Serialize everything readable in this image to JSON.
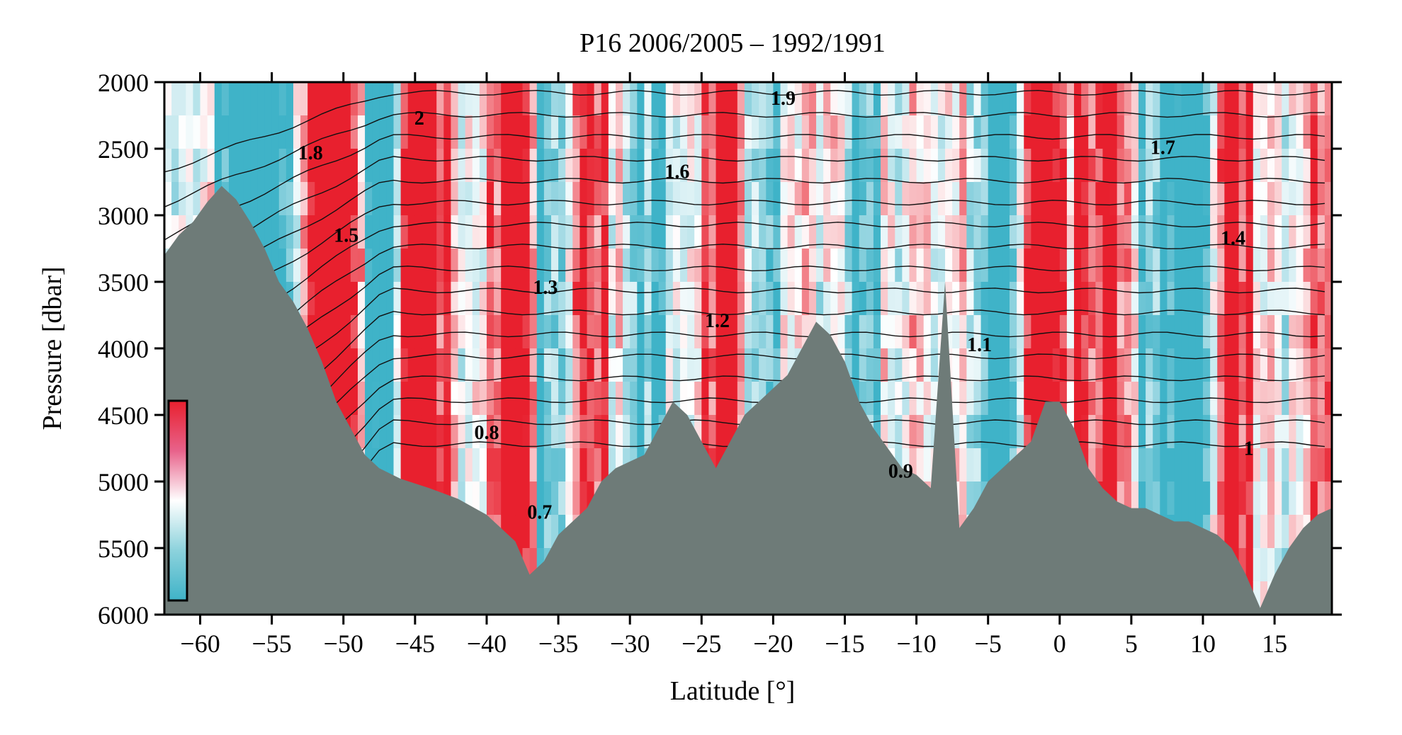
{
  "chart_data": {
    "type": "heatmap",
    "title": "P16 2006/2005 – 1992/1991",
    "xlabel": "Latitude [°]",
    "ylabel": "Pressure [dbar]",
    "xlim": [
      -62.5,
      19
    ],
    "ylim": [
      6000,
      2000
    ],
    "x_ticks": [
      -60,
      -55,
      -50,
      -45,
      -40,
      -35,
      -30,
      -25,
      -20,
      -15,
      -10,
      -5,
      0,
      5,
      10,
      15
    ],
    "y_ticks": [
      2000,
      2500,
      3000,
      3500,
      4000,
      4500,
      5000,
      5500,
      6000
    ],
    "colormap": {
      "low_color": "#3fb3c8",
      "mid_color": "#ffffff",
      "high_color": "#e8202e",
      "ticks_labeled": false
    },
    "bottom_color": "#6e7b78",
    "contour_labels": [
      {
        "text": "2",
        "lat": -44.7,
        "pres": 2320
      },
      {
        "text": "1.9",
        "lat": -19.3,
        "pres": 2170
      },
      {
        "text": "1.8",
        "lat": -52.3,
        "pres": 2580
      },
      {
        "text": "1.7",
        "lat": 7.2,
        "pres": 2540
      },
      {
        "text": "1.6",
        "lat": -26.7,
        "pres": 2720
      },
      {
        "text": "1.5",
        "lat": -49.8,
        "pres": 3200
      },
      {
        "text": "1.4",
        "lat": 12.1,
        "pres": 3220
      },
      {
        "text": "1.3",
        "lat": -35.9,
        "pres": 3590
      },
      {
        "text": "1.2",
        "lat": -23.9,
        "pres": 3840
      },
      {
        "text": "1.1",
        "lat": -5.6,
        "pres": 4020
      },
      {
        "text": "1",
        "lat": 13.2,
        "pres": 4800
      },
      {
        "text": "0.9",
        "lat": -11.1,
        "pres": 4970
      },
      {
        "text": "0.8",
        "lat": -40.0,
        "pres": 4680
      },
      {
        "text": "0.7",
        "lat": -36.3,
        "pres": 5280
      }
    ],
    "bathymetry": [
      [
        -62.5,
        3300
      ],
      [
        -61.5,
        3150
      ],
      [
        -60.5,
        3050
      ],
      [
        -59.5,
        2900
      ],
      [
        -58.5,
        2780
      ],
      [
        -57.5,
        2880
      ],
      [
        -56.5,
        3050
      ],
      [
        -55.5,
        3250
      ],
      [
        -54.5,
        3500
      ],
      [
        -53.5,
        3650
      ],
      [
        -52.5,
        3850
      ],
      [
        -51.5,
        4100
      ],
      [
        -50.5,
        4400
      ],
      [
        -49.5,
        4600
      ],
      [
        -48.5,
        4800
      ],
      [
        -47.5,
        4900
      ],
      [
        -46,
        4980
      ],
      [
        -44,
        5050
      ],
      [
        -42,
        5130
      ],
      [
        -40,
        5250
      ],
      [
        -38,
        5450
      ],
      [
        -37,
        5700
      ],
      [
        -36,
        5600
      ],
      [
        -35,
        5400
      ],
      [
        -34,
        5300
      ],
      [
        -33,
        5200
      ],
      [
        -32,
        5000
      ],
      [
        -31,
        4900
      ],
      [
        -30,
        4850
      ],
      [
        -29,
        4800
      ],
      [
        -28,
        4600
      ],
      [
        -27,
        4400
      ],
      [
        -26,
        4500
      ],
      [
        -25,
        4700
      ],
      [
        -24,
        4900
      ],
      [
        -23,
        4700
      ],
      [
        -22,
        4500
      ],
      [
        -21,
        4400
      ],
      [
        -20,
        4300
      ],
      [
        -19,
        4200
      ],
      [
        -18,
        4000
      ],
      [
        -17,
        3800
      ],
      [
        -16,
        3900
      ],
      [
        -15,
        4100
      ],
      [
        -14,
        4400
      ],
      [
        -13,
        4600
      ],
      [
        -12,
        4750
      ],
      [
        -11,
        4900
      ],
      [
        -10,
        4950
      ],
      [
        -9,
        5050
      ],
      [
        -8,
        3500
      ],
      [
        -7,
        5350
      ],
      [
        -6,
        5200
      ],
      [
        -5,
        5000
      ],
      [
        -4,
        4900
      ],
      [
        -3,
        4800
      ],
      [
        -2,
        4700
      ],
      [
        -1,
        4400
      ],
      [
        0,
        4400
      ],
      [
        1,
        4600
      ],
      [
        2,
        4900
      ],
      [
        3,
        5050
      ],
      [
        4,
        5150
      ],
      [
        5,
        5200
      ],
      [
        6,
        5200
      ],
      [
        7,
        5250
      ],
      [
        8,
        5300
      ],
      [
        9,
        5300
      ],
      [
        10,
        5350
      ],
      [
        11,
        5400
      ],
      [
        12,
        5500
      ],
      [
        13,
        5700
      ],
      [
        14,
        5950
      ],
      [
        15,
        5700
      ],
      [
        16,
        5500
      ],
      [
        17,
        5350
      ],
      [
        18,
        5250
      ],
      [
        19,
        5200
      ]
    ]
  }
}
